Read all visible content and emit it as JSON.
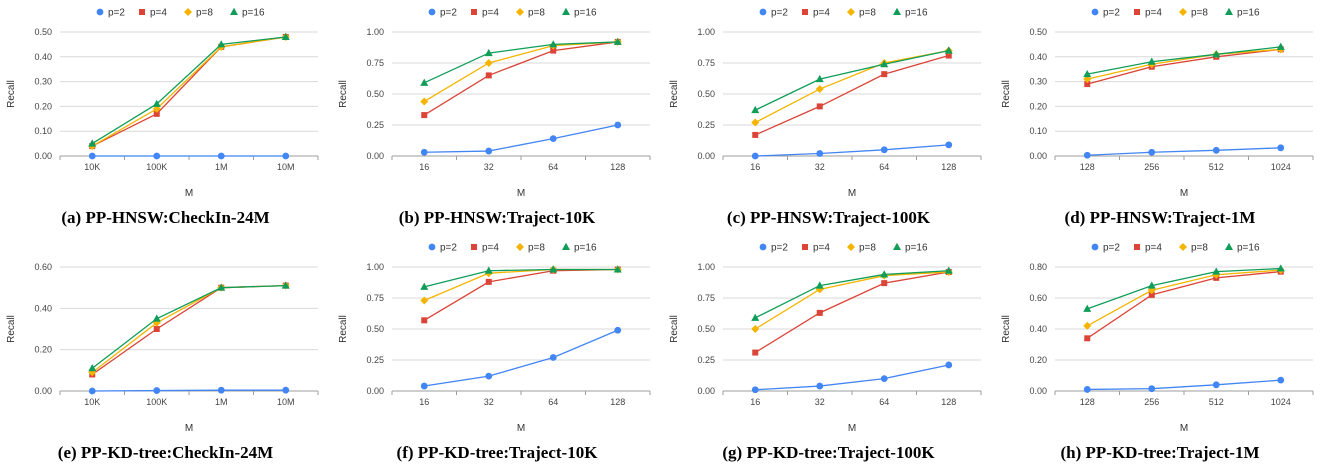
{
  "colors": {
    "p2": "#4285F4",
    "p4": "#DB4437",
    "p8": "#F4B400",
    "p16": "#0F9D58"
  },
  "legend": [
    {
      "name": "p=2",
      "marker": "circle",
      "color": "#4285F4"
    },
    {
      "name": "p=4",
      "marker": "square",
      "color": "#DB4437"
    },
    {
      "name": "p=8",
      "marker": "diamond",
      "color": "#F4B400"
    },
    {
      "name": "p=16",
      "marker": "triangle",
      "color": "#0F9D58"
    }
  ],
  "chart_data": [
    {
      "type": "line",
      "caption": "(a) PP-HNSW:CheckIn-24M",
      "xlabel": "M",
      "ylabel": "Recall",
      "categories": [
        "10K",
        "100K",
        "1M",
        "10M"
      ],
      "yticks": [
        "0.00",
        "0.10",
        "0.20",
        "0.30",
        "0.40",
        "0.50"
      ],
      "ylim": [
        0,
        0.5
      ],
      "grid": true,
      "legend_position": "top",
      "series": [
        {
          "name": "p=2",
          "values": [
            0.0,
            0.0,
            0.0,
            0.0
          ]
        },
        {
          "name": "p=4",
          "values": [
            0.04,
            0.17,
            0.44,
            0.48
          ]
        },
        {
          "name": "p=8",
          "values": [
            0.04,
            0.19,
            0.44,
            0.48
          ]
        },
        {
          "name": "p=16",
          "values": [
            0.05,
            0.21,
            0.45,
            0.48
          ]
        }
      ]
    },
    {
      "type": "line",
      "caption": "(b) PP-HNSW:Traject-10K",
      "xlabel": "M",
      "ylabel": "Recall",
      "categories": [
        "16",
        "32",
        "64",
        "128"
      ],
      "yticks": [
        "0.00",
        "0.25",
        "0.50",
        "0.75",
        "1.00"
      ],
      "ylim": [
        0,
        1.0
      ],
      "grid": true,
      "legend_position": "top",
      "series": [
        {
          "name": "p=2",
          "values": [
            0.03,
            0.04,
            0.14,
            0.25
          ]
        },
        {
          "name": "p=4",
          "values": [
            0.33,
            0.65,
            0.85,
            0.92
          ]
        },
        {
          "name": "p=8",
          "values": [
            0.44,
            0.75,
            0.89,
            0.92
          ]
        },
        {
          "name": "p=16",
          "values": [
            0.59,
            0.83,
            0.9,
            0.92
          ]
        }
      ]
    },
    {
      "type": "line",
      "caption": "(c) PP-HNSW:Traject-100K",
      "xlabel": "M",
      "ylabel": "Recall",
      "categories": [
        "16",
        "32",
        "64",
        "128"
      ],
      "yticks": [
        "0.00",
        "0.25",
        "0.50",
        "0.75",
        "1.00"
      ],
      "ylim": [
        0,
        1.0
      ],
      "grid": true,
      "legend_position": "top",
      "series": [
        {
          "name": "p=2",
          "values": [
            0.0,
            0.02,
            0.05,
            0.09
          ]
        },
        {
          "name": "p=4",
          "values": [
            0.17,
            0.4,
            0.66,
            0.81
          ]
        },
        {
          "name": "p=8",
          "values": [
            0.27,
            0.54,
            0.75,
            0.85
          ]
        },
        {
          "name": "p=16",
          "values": [
            0.37,
            0.62,
            0.74,
            0.85
          ]
        }
      ]
    },
    {
      "type": "line",
      "caption": "(d) PP-HNSW:Traject-1M",
      "xlabel": "M",
      "ylabel": "Recall",
      "categories": [
        "128",
        "256",
        "512",
        "1024"
      ],
      "yticks": [
        "0.00",
        "0.10",
        "0.20",
        "0.30",
        "0.40",
        "0.50"
      ],
      "ylim": [
        0,
        0.5
      ],
      "grid": true,
      "legend_position": "top",
      "series": [
        {
          "name": "p=2",
          "values": [
            0.003,
            0.015,
            0.023,
            0.033
          ]
        },
        {
          "name": "p=4",
          "values": [
            0.29,
            0.36,
            0.4,
            0.43
          ]
        },
        {
          "name": "p=8",
          "values": [
            0.31,
            0.37,
            0.41,
            0.43
          ]
        },
        {
          "name": "p=16",
          "values": [
            0.33,
            0.38,
            0.41,
            0.44
          ]
        }
      ]
    },
    {
      "type": "line",
      "caption": "(e) PP-KD-tree:CheckIn-24M",
      "xlabel": "M",
      "ylabel": "Recall",
      "categories": [
        "10K",
        "100K",
        "1M",
        "10M"
      ],
      "yticks": [
        "0.00",
        "0.20",
        "0.40",
        "0.60"
      ],
      "ylim": [
        0,
        0.6
      ],
      "grid": true,
      "legend_position": "none",
      "series": [
        {
          "name": "p=2",
          "values": [
            0.0,
            0.002,
            0.004,
            0.004
          ]
        },
        {
          "name": "p=4",
          "values": [
            0.08,
            0.3,
            0.5,
            0.51
          ]
        },
        {
          "name": "p=8",
          "values": [
            0.09,
            0.33,
            0.5,
            0.51
          ]
        },
        {
          "name": "p=16",
          "values": [
            0.11,
            0.35,
            0.5,
            0.51
          ]
        }
      ]
    },
    {
      "type": "line",
      "caption": "(f) PP-KD-tree:Traject-10K",
      "xlabel": "M",
      "ylabel": "Recall",
      "categories": [
        "16",
        "32",
        "64",
        "128"
      ],
      "yticks": [
        "0.00",
        "0.25",
        "0.50",
        "0.75",
        "1.00"
      ],
      "ylim": [
        0,
        1.0
      ],
      "grid": true,
      "legend_position": "top",
      "series": [
        {
          "name": "p=2",
          "values": [
            0.04,
            0.12,
            0.27,
            0.49
          ]
        },
        {
          "name": "p=4",
          "values": [
            0.57,
            0.88,
            0.97,
            0.98
          ]
        },
        {
          "name": "p=8",
          "values": [
            0.73,
            0.95,
            0.98,
            0.98
          ]
        },
        {
          "name": "p=16",
          "values": [
            0.84,
            0.97,
            0.98,
            0.98
          ]
        }
      ]
    },
    {
      "type": "line",
      "caption": "(g) PP-KD-tree:Traject-100K",
      "xlabel": "M",
      "ylabel": "Recall",
      "categories": [
        "16",
        "32",
        "64",
        "128"
      ],
      "yticks": [
        "0.00",
        "0.25",
        "0.50",
        "0.75",
        "1.00"
      ],
      "ylim": [
        0,
        1.0
      ],
      "grid": true,
      "legend_position": "top",
      "series": [
        {
          "name": "p=2",
          "values": [
            0.01,
            0.04,
            0.1,
            0.21
          ]
        },
        {
          "name": "p=4",
          "values": [
            0.31,
            0.63,
            0.87,
            0.96
          ]
        },
        {
          "name": "p=8",
          "values": [
            0.5,
            0.82,
            0.93,
            0.96
          ]
        },
        {
          "name": "p=16",
          "values": [
            0.59,
            0.85,
            0.94,
            0.97
          ]
        }
      ]
    },
    {
      "type": "line",
      "caption": "(h) PP-KD-tree:Traject-1M",
      "xlabel": "M",
      "ylabel": "Recall",
      "categories": [
        "128",
        "256",
        "512",
        "1024"
      ],
      "yticks": [
        "0.00",
        "0.20",
        "0.40",
        "0.60",
        "0.80"
      ],
      "ylim": [
        0,
        0.8
      ],
      "grid": true,
      "legend_position": "top",
      "series": [
        {
          "name": "p=2",
          "values": [
            0.01,
            0.015,
            0.04,
            0.07
          ]
        },
        {
          "name": "p=4",
          "values": [
            0.34,
            0.62,
            0.73,
            0.77
          ]
        },
        {
          "name": "p=8",
          "values": [
            0.42,
            0.65,
            0.75,
            0.78
          ]
        },
        {
          "name": "p=16",
          "values": [
            0.53,
            0.68,
            0.77,
            0.79
          ]
        }
      ]
    }
  ]
}
